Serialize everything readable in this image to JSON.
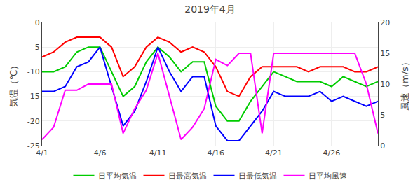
{
  "chart_data": {
    "type": "line",
    "title": "2019年4月",
    "x": [
      1,
      2,
      3,
      4,
      5,
      6,
      7,
      8,
      9,
      10,
      11,
      12,
      13,
      14,
      15,
      16,
      17,
      18,
      19,
      20,
      21,
      22,
      23,
      24,
      25,
      26,
      27,
      28,
      29,
      30
    ],
    "xlim": [
      1,
      30
    ],
    "xticks": [
      {
        "value": 1,
        "label": "4/1"
      },
      {
        "value": 6,
        "label": "4/6"
      },
      {
        "value": 11,
        "label": "4/11"
      },
      {
        "value": 16,
        "label": "4/16"
      },
      {
        "value": 21,
        "label": "4/21"
      },
      {
        "value": 26,
        "label": "4/26"
      }
    ],
    "ylabel": "気温（℃）",
    "ylim": [
      -25,
      0
    ],
    "yticks": [
      0,
      -5,
      -10,
      -15,
      -20,
      -25
    ],
    "y2label": "風速（m/s）",
    "y2lim": [
      0,
      20
    ],
    "y2ticks": [
      0,
      5,
      10,
      15,
      20
    ],
    "grid": true,
    "legend": "bottom",
    "series": [
      {
        "name": "日平均気温",
        "color": "#00cc00",
        "values": [
          -10,
          -10,
          -9,
          -6,
          -5,
          -5,
          -10,
          -15,
          -13,
          -8,
          -5,
          -7,
          -10,
          -8,
          -8,
          -17,
          -20,
          -20,
          -16,
          -13,
          -10,
          -11,
          -12,
          -12,
          -12,
          -13,
          -11,
          -12,
          -13,
          -12
        ]
      },
      {
        "name": "日最高気温",
        "color": "#ff0000",
        "values": [
          -7,
          -6,
          -4,
          -3,
          -3,
          -3,
          -5,
          -11,
          -9,
          -5,
          -3,
          -4,
          -6,
          -5,
          -6,
          -9,
          -14,
          -15,
          -11,
          -9,
          -9,
          -9,
          -9,
          -10,
          -9,
          -9,
          -9,
          -10,
          -10,
          -9
        ]
      },
      {
        "name": "日最低気温",
        "color": "#0000ff",
        "values": [
          -14,
          -14,
          -13,
          -9,
          -8,
          -5,
          -13,
          -21,
          -18,
          -12,
          -5,
          -10,
          -14,
          -11,
          -11,
          -21,
          -24,
          -24,
          -21,
          -18,
          -14,
          -15,
          -15,
          -15,
          -14,
          -16,
          -15,
          -16,
          -17,
          -16
        ]
      },
      {
        "name": "日平均風速",
        "color": "#ff00ff",
        "axis": "y2",
        "values": [
          1,
          3,
          9,
          9,
          10,
          10,
          10,
          2,
          6,
          9,
          15,
          8,
          1,
          3,
          6,
          14,
          13,
          15,
          15,
          2,
          15,
          15,
          15,
          15,
          15,
          15,
          15,
          15,
          10,
          2
        ]
      }
    ]
  }
}
